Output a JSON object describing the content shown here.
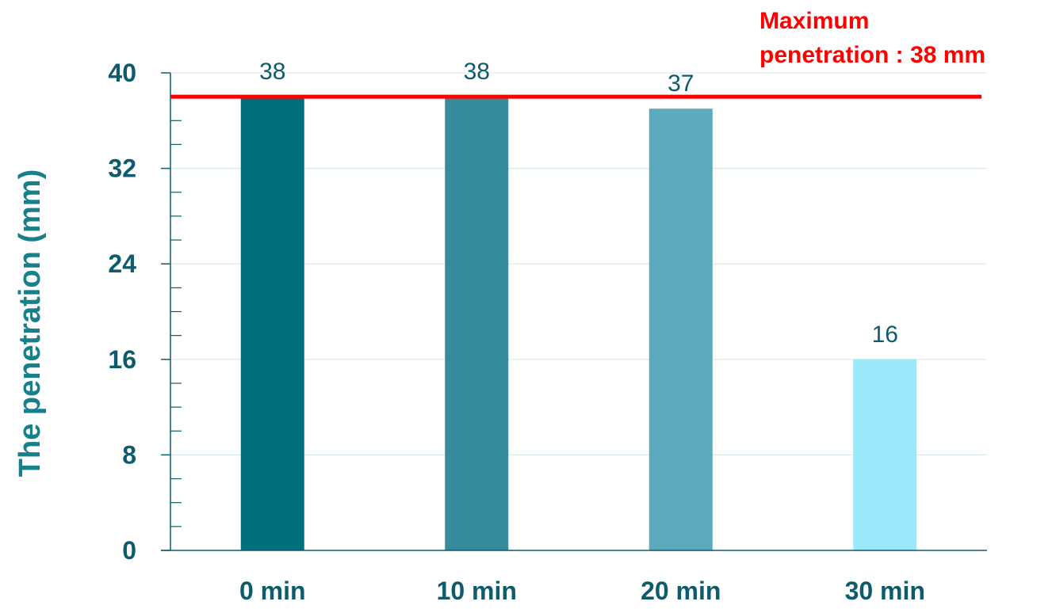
{
  "chart_data": {
    "type": "bar",
    "categories": [
      "0 min",
      "10 min",
      "20 min",
      "30 min"
    ],
    "values": [
      38,
      38,
      37,
      16
    ],
    "data_labels": [
      "38",
      "38",
      "37",
      "16"
    ],
    "ylabel": "The penetration (mm)",
    "ylim": [
      0,
      40
    ],
    "yticks": [
      0,
      8,
      16,
      24,
      32,
      40
    ],
    "y_minor_step": 2,
    "grid": true,
    "bar_colors": [
      "#00707b",
      "#378c9b",
      "#5babbc",
      "#9be8fa"
    ],
    "reference_line": {
      "value": 38,
      "color": "#ff0000",
      "label_lines": [
        "Maximum",
        "penetration : 38 mm"
      ]
    }
  }
}
